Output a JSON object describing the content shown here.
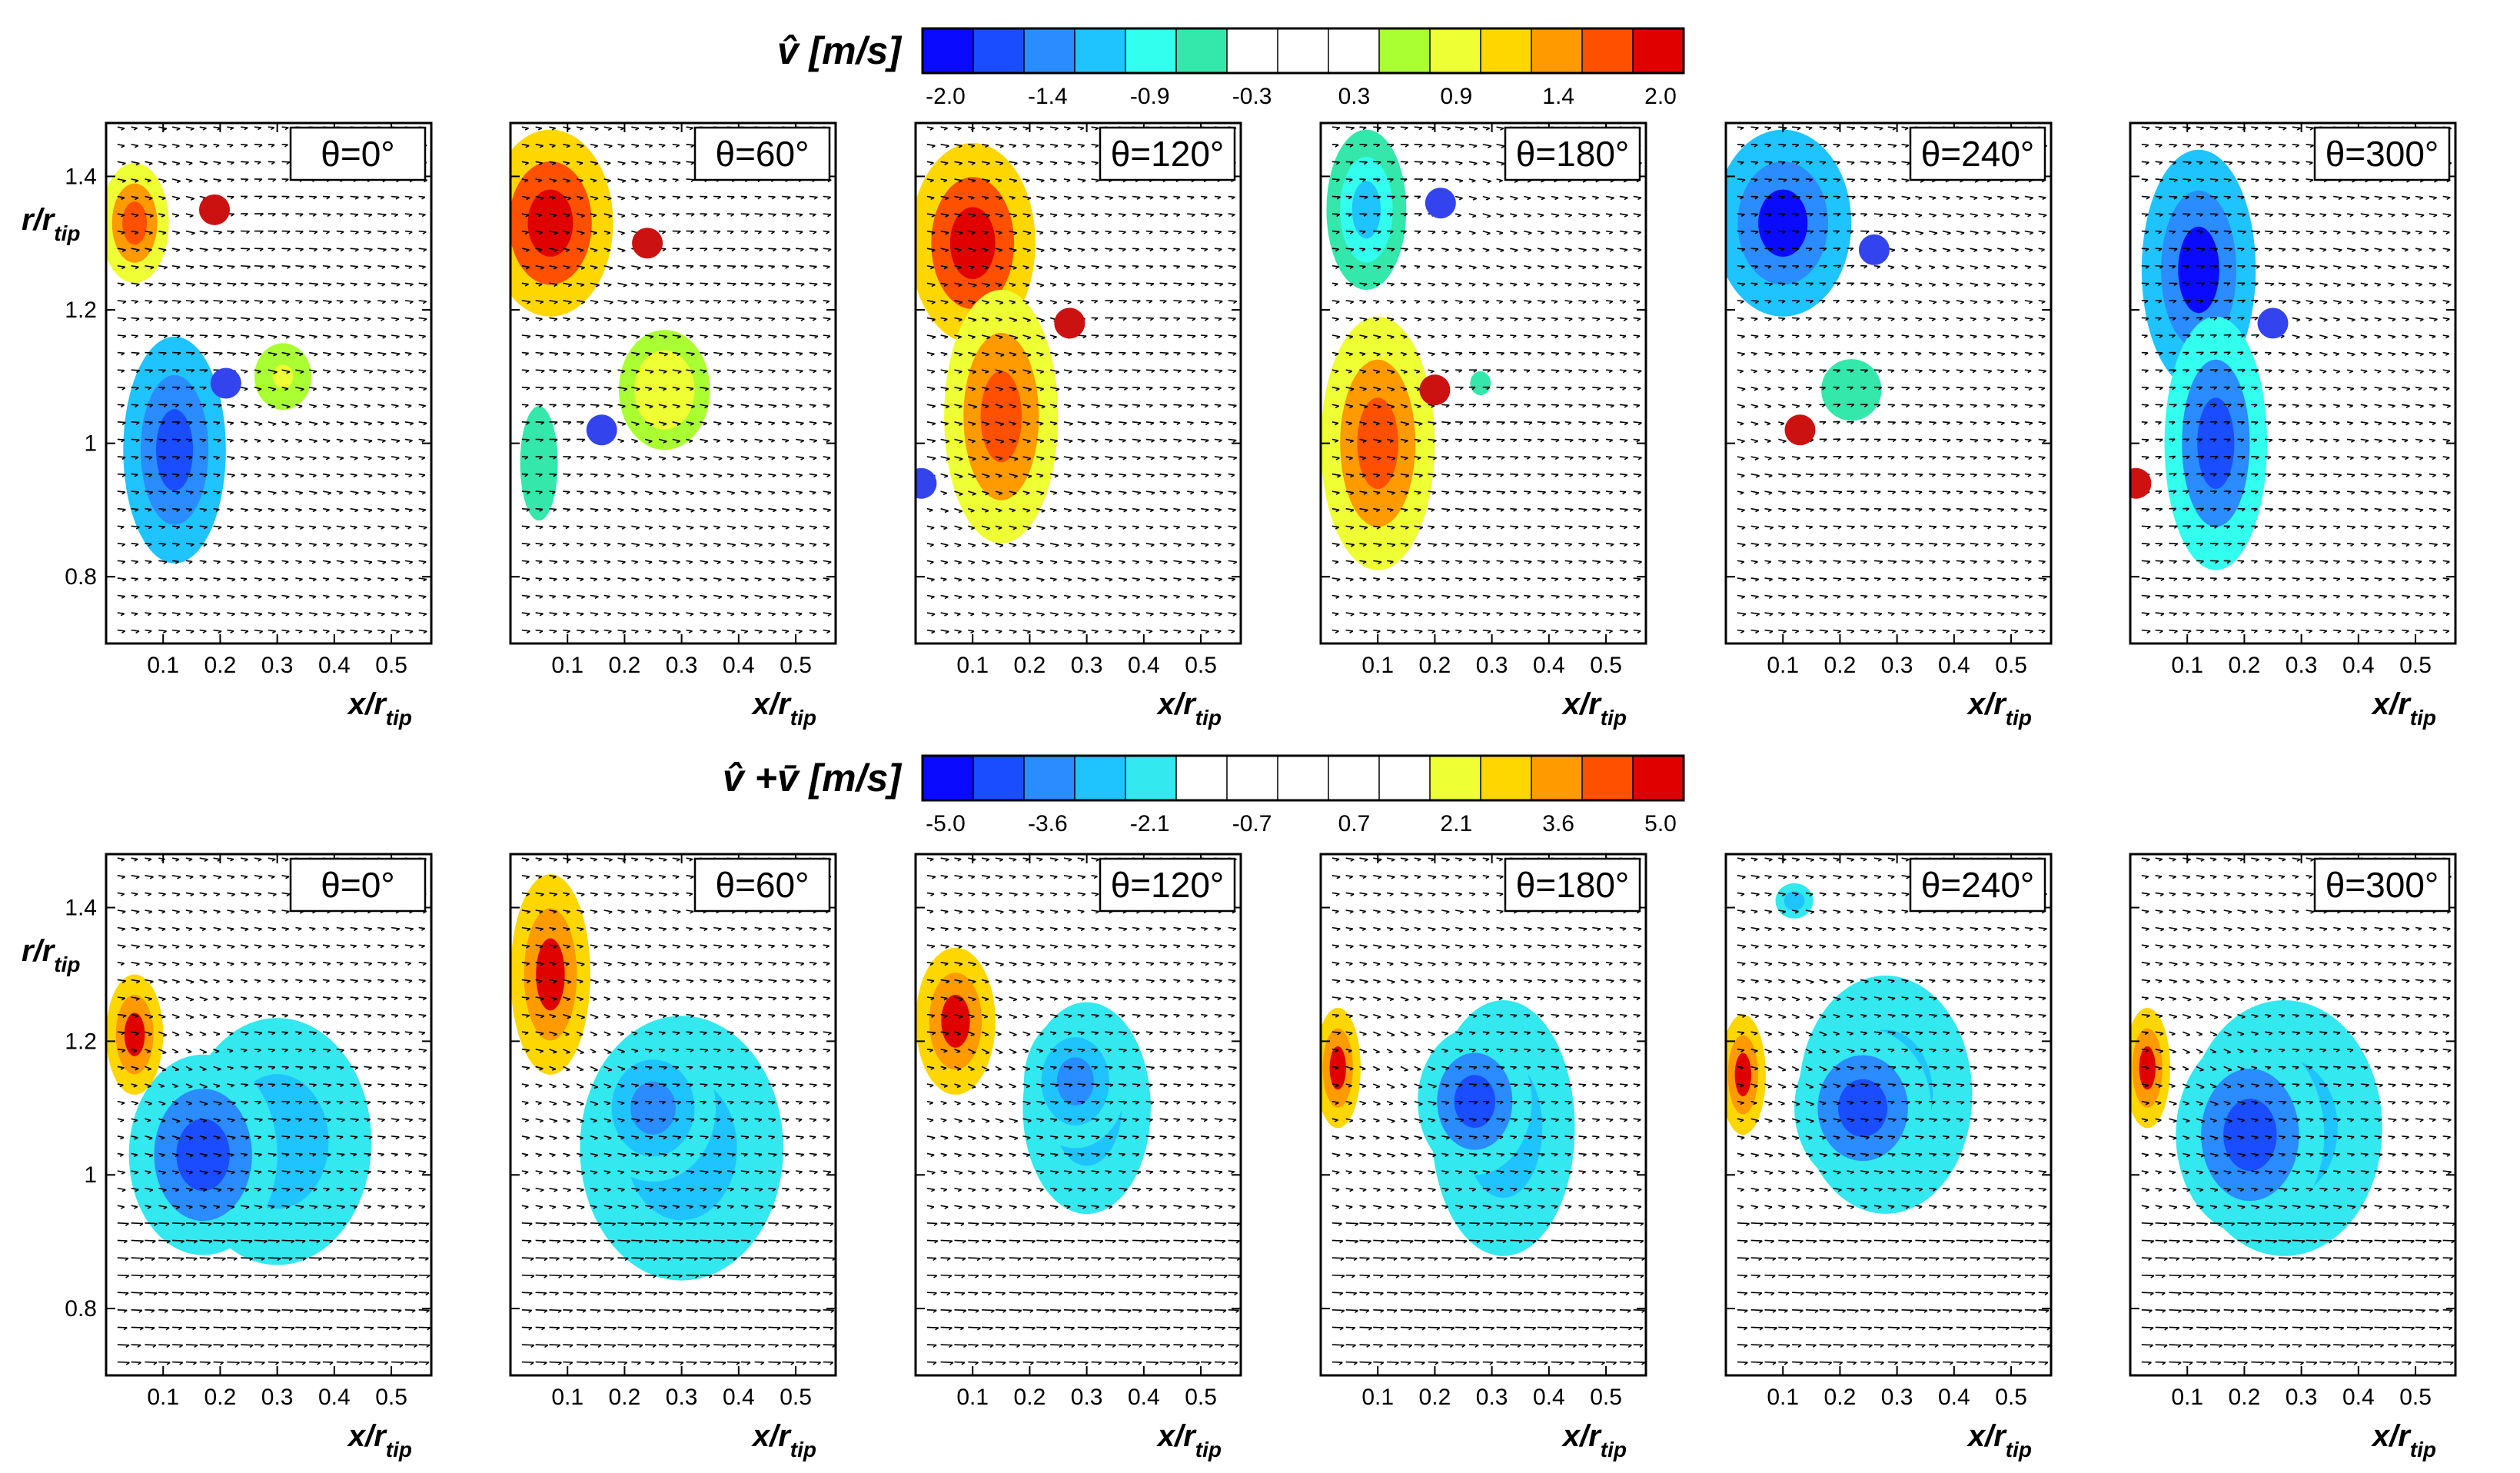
{
  "chart_data": {
    "type": "contour",
    "figure_description_label": "phase-locked velocity fluctuation maps",
    "rows": [
      {
        "id": "top",
        "colorbar": {
          "title_symbol": "v̂",
          "title_unit": "[m/s]",
          "tick_labels": [
            "-2.0",
            "-1.4",
            "-0.9",
            "-0.3",
            "0.3",
            "0.9",
            "1.4",
            "2.0"
          ],
          "range": [
            -2.0,
            2.0
          ],
          "levels": 15,
          "colors": [
            "#0a0aff",
            "#1a4dff",
            "#2a8cff",
            "#1fc4ff",
            "#33ffee",
            "#33e8aa",
            "#ffffff",
            "#ffffff",
            "#ffffff",
            "#aaff33",
            "#eeff33",
            "#ffd700",
            "#ff9a00",
            "#ff5000",
            "#e10000"
          ]
        },
        "panels": [
          {
            "theta": "θ=0°",
            "blue_marker": [
              0.21,
              1.09
            ],
            "red_marker": [
              0.19,
              1.35
            ],
            "blobs": [
              {
                "value": -1.7,
                "center": [
                  0.12,
                  0.99
                ],
                "radii": [
                  0.09,
                  0.17
                ]
              },
              {
                "value": 1.6,
                "center": [
                  0.05,
                  1.33
                ],
                "radii": [
                  0.06,
                  0.09
                ]
              },
              {
                "value": 0.8,
                "center": [
                  0.31,
                  1.1
                ],
                "radii": [
                  0.05,
                  0.05
                ]
              }
            ]
          },
          {
            "theta": "θ=60°",
            "blue_marker": [
              0.16,
              1.02
            ],
            "red_marker": [
              0.24,
              1.3
            ],
            "blobs": [
              {
                "value": 1.9,
                "center": [
                  0.07,
                  1.33
                ],
                "radii": [
                  0.11,
                  0.14
                ]
              },
              {
                "value": 0.9,
                "center": [
                  0.27,
                  1.08
                ],
                "radii": [
                  0.08,
                  0.09
                ]
              },
              {
                "value": -0.6,
                "center": [
                  0.05,
                  0.97
                ],
                "radii": [
                  0.05,
                  0.13
                ]
              }
            ]
          },
          {
            "theta": "θ=120°",
            "blue_marker": [
              0.01,
              0.94
            ],
            "red_marker": [
              0.27,
              1.18
            ],
            "blobs": [
              {
                "value": 1.9,
                "center": [
                  0.1,
                  1.3
                ],
                "radii": [
                  0.11,
                  0.15
                ]
              },
              {
                "value": 1.6,
                "center": [
                  0.15,
                  1.04
                ],
                "radii": [
                  0.1,
                  0.19
                ]
              }
            ]
          },
          {
            "theta": "θ=180°",
            "blue_marker": [
              0.21,
              1.36
            ],
            "red_marker": [
              0.2,
              1.08
            ],
            "blobs": [
              {
                "value": -1.0,
                "center": [
                  0.08,
                  1.35
                ],
                "radii": [
                  0.07,
                  0.12
                ]
              },
              {
                "value": 1.5,
                "center": [
                  0.1,
                  1.0
                ],
                "radii": [
                  0.1,
                  0.19
                ]
              },
              {
                "value": -0.5,
                "center": [
                  0.28,
                  1.09
                ],
                "radii": [
                  0.05,
                  0.05
                ]
              }
            ]
          },
          {
            "theta": "θ=240°",
            "blue_marker": [
              0.26,
              1.29
            ],
            "red_marker": [
              0.13,
              1.02
            ],
            "blobs": [
              {
                "value": -1.8,
                "center": [
                  0.1,
                  1.33
                ],
                "radii": [
                  0.12,
                  0.14
                ]
              },
              {
                "value": -0.6,
                "center": [
                  0.22,
                  1.08
                ],
                "radii": [
                  0.08,
                  0.07
                ]
              }
            ]
          },
          {
            "theta": "θ=300°",
            "blue_marker": [
              0.25,
              1.18
            ],
            "red_marker": [
              0.01,
              0.94
            ],
            "blobs": [
              {
                "value": -1.8,
                "center": [
                  0.12,
                  1.26
                ],
                "radii": [
                  0.1,
                  0.18
                ]
              },
              {
                "value": -1.6,
                "center": [
                  0.15,
                  1.0
                ],
                "radii": [
                  0.09,
                  0.19
                ]
              }
            ]
          }
        ]
      },
      {
        "id": "bottom",
        "colorbar": {
          "title_symbol": "v̂ +v̄",
          "title_unit": "[m/s]",
          "tick_labels": [
            "-5.0",
            "-3.6",
            "-2.1",
            "-0.7",
            "0.7",
            "2.1",
            "3.6",
            "5.0"
          ],
          "range": [
            -5.0,
            5.0
          ],
          "levels": 15,
          "colors": [
            "#0a0aff",
            "#1a4dff",
            "#2a8cff",
            "#1fc4ff",
            "#33e8ee",
            "#ffffff",
            "#ffffff",
            "#ffffff",
            "#ffffff",
            "#ffffff",
            "#eeff33",
            "#ffd700",
            "#ff9a00",
            "#ff5000",
            "#e10000"
          ]
        },
        "panels": [
          {
            "theta": "θ=0°",
            "blobs": [
              {
                "value": -2.6,
                "center": [
                  0.3,
                  1.05
                ],
                "radii": [
                  0.25,
                  0.28
                ]
              },
              {
                "value": -4.2,
                "center": [
                  0.17,
                  1.03
                ],
                "radii": [
                  0.13,
                  0.15
                ]
              },
              {
                "value": 4.5,
                "center": [
                  0.05,
                  1.21
                ],
                "radii": [
                  0.05,
                  0.09
                ]
              }
            ]
          },
          {
            "theta": "θ=60°",
            "blobs": [
              {
                "value": -2.6,
                "center": [
                  0.3,
                  1.04
                ],
                "radii": [
                  0.27,
                  0.3
                ]
              },
              {
                "value": -3.3,
                "center": [
                  0.25,
                  1.1
                ],
                "radii": [
                  0.11,
                  0.11
                ]
              },
              {
                "value": 4.5,
                "center": [
                  0.07,
                  1.3
                ],
                "radii": [
                  0.07,
                  0.15
                ]
              }
            ]
          },
          {
            "theta": "θ=120°",
            "blobs": [
              {
                "value": -2.6,
                "center": [
                  0.3,
                  1.1
                ],
                "radii": [
                  0.17,
                  0.24
                ]
              },
              {
                "value": -3.6,
                "center": [
                  0.28,
                  1.14
                ],
                "radii": [
                  0.09,
                  0.1
                ]
              },
              {
                "value": 4.5,
                "center": [
                  0.07,
                  1.23
                ],
                "radii": [
                  0.07,
                  0.11
                ]
              }
            ]
          },
          {
            "theta": "θ=180°",
            "blobs": [
              {
                "value": -2.6,
                "center": [
                  0.32,
                  1.07
                ],
                "radii": [
                  0.19,
                  0.29
                ]
              },
              {
                "value": -3.8,
                "center": [
                  0.27,
                  1.11
                ],
                "radii": [
                  0.1,
                  0.11
                ]
              },
              {
                "value": 4.5,
                "center": [
                  0.03,
                  1.16
                ],
                "radii": [
                  0.04,
                  0.09
                ]
              }
            ]
          },
          {
            "theta": "θ=240°",
            "blobs": [
              {
                "value": -2.6,
                "center": [
                  0.28,
                  1.12
                ],
                "radii": [
                  0.23,
                  0.27
                ]
              },
              {
                "value": -3.9,
                "center": [
                  0.24,
                  1.1
                ],
                "radii": [
                  0.12,
                  0.12
                ]
              },
              {
                "value": -2.6,
                "center": [
                  0.12,
                  1.41
                ],
                "radii": [
                  0.05,
                  0.04
                ]
              },
              {
                "value": 4.5,
                "center": [
                  0.03,
                  1.15
                ],
                "radii": [
                  0.04,
                  0.09
                ]
              }
            ]
          },
          {
            "theta": "θ=300°",
            "blobs": [
              {
                "value": -2.6,
                "center": [
                  0.27,
                  1.07
                ],
                "radii": [
                  0.26,
                  0.29
                ]
              },
              {
                "value": -4.2,
                "center": [
                  0.21,
                  1.06
                ],
                "radii": [
                  0.13,
                  0.15
                ]
              },
              {
                "value": 4.5,
                "center": [
                  0.03,
                  1.16
                ],
                "radii": [
                  0.04,
                  0.09
                ]
              }
            ]
          }
        ]
      }
    ],
    "axes": {
      "xlabel": "x/r",
      "xlabel_sub": "tip",
      "ylabel": "r/r",
      "ylabel_sub": "tip",
      "xlim": [
        0.0,
        0.57
      ],
      "ylim": [
        0.7,
        1.48
      ],
      "xticks": [
        0.1,
        0.2,
        0.3,
        0.4,
        0.5
      ],
      "xtick_labels": [
        "0.1",
        "0.2",
        "0.3",
        "0.4",
        "0.5"
      ],
      "yticks": [
        0.8,
        1.0,
        1.2,
        1.4
      ],
      "ytick_labels": [
        "0.8",
        "1",
        "1.2",
        "1.4"
      ]
    },
    "marker_colors": {
      "blue": "#3344ee",
      "red": "#cc1111"
    }
  }
}
